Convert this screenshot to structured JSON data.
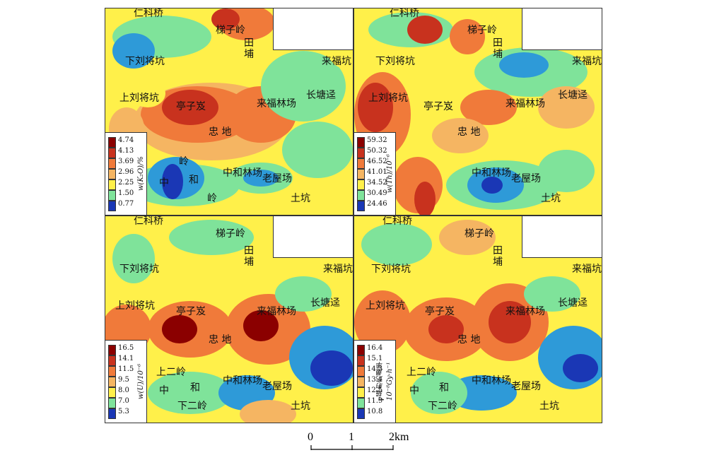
{
  "legend_colors": [
    "#8b0000",
    "#c8321e",
    "#f07a3a",
    "#f5b562",
    "#fff04a",
    "#7fe39a",
    "#2e9ad8",
    "#1a37b5"
  ],
  "places": {
    "ren_ke_qiao": "仁科桥",
    "ti_zi_ling": "梯子岭",
    "tian": "田",
    "pu": "埔",
    "xia_liu_jiang_keng": "下刘将坑",
    "lai_fu_keng": "来福坑",
    "shang_liu_jiang_keng": "上刘将坑",
    "ting_zi_ban": "亭子岌",
    "lai_fu_lin_chang": "来福林场",
    "chang_tang_jing": "长塘迳",
    "zhong_di": "忠 地",
    "ling1": "岭",
    "zhong_he_lin_chang": "中和林场",
    "zhong": "中",
    "he": "和",
    "lao_wu_chang": "老屋场",
    "tu_keng": "土坑",
    "xia_er_ling": "下二岭",
    "shang_er_ling": "上二岭"
  },
  "panels": [
    {
      "id": "k2o",
      "legend_title": "w(K₂O)/%",
      "levels": [
        "4.74",
        "4.13",
        "3.69",
        "2.96",
        "2.25",
        "1.50",
        "0.77"
      ]
    },
    {
      "id": "th",
      "legend_title": "w(Th)/10⁻⁶",
      "levels": [
        "59.32",
        "50.32",
        "46.52",
        "41.01",
        "34.52",
        "30.49",
        "24.46"
      ]
    },
    {
      "id": "u",
      "legend_title": "w(U)/10⁻⁶",
      "levels": [
        "16.5",
        "14.1",
        "11.5",
        "9.5",
        "8.0",
        "7.0",
        "5.3"
      ]
    },
    {
      "id": "gamma",
      "legend_title": "γ辐射剂量率 10⁻⁸Gy·h⁻¹",
      "levels": [
        "16.4",
        "15.1",
        "14.3",
        "13.4",
        "12.5",
        "11.9",
        "10.8"
      ]
    }
  ],
  "scale": {
    "zero": "0",
    "one": "1",
    "two": "2km"
  }
}
